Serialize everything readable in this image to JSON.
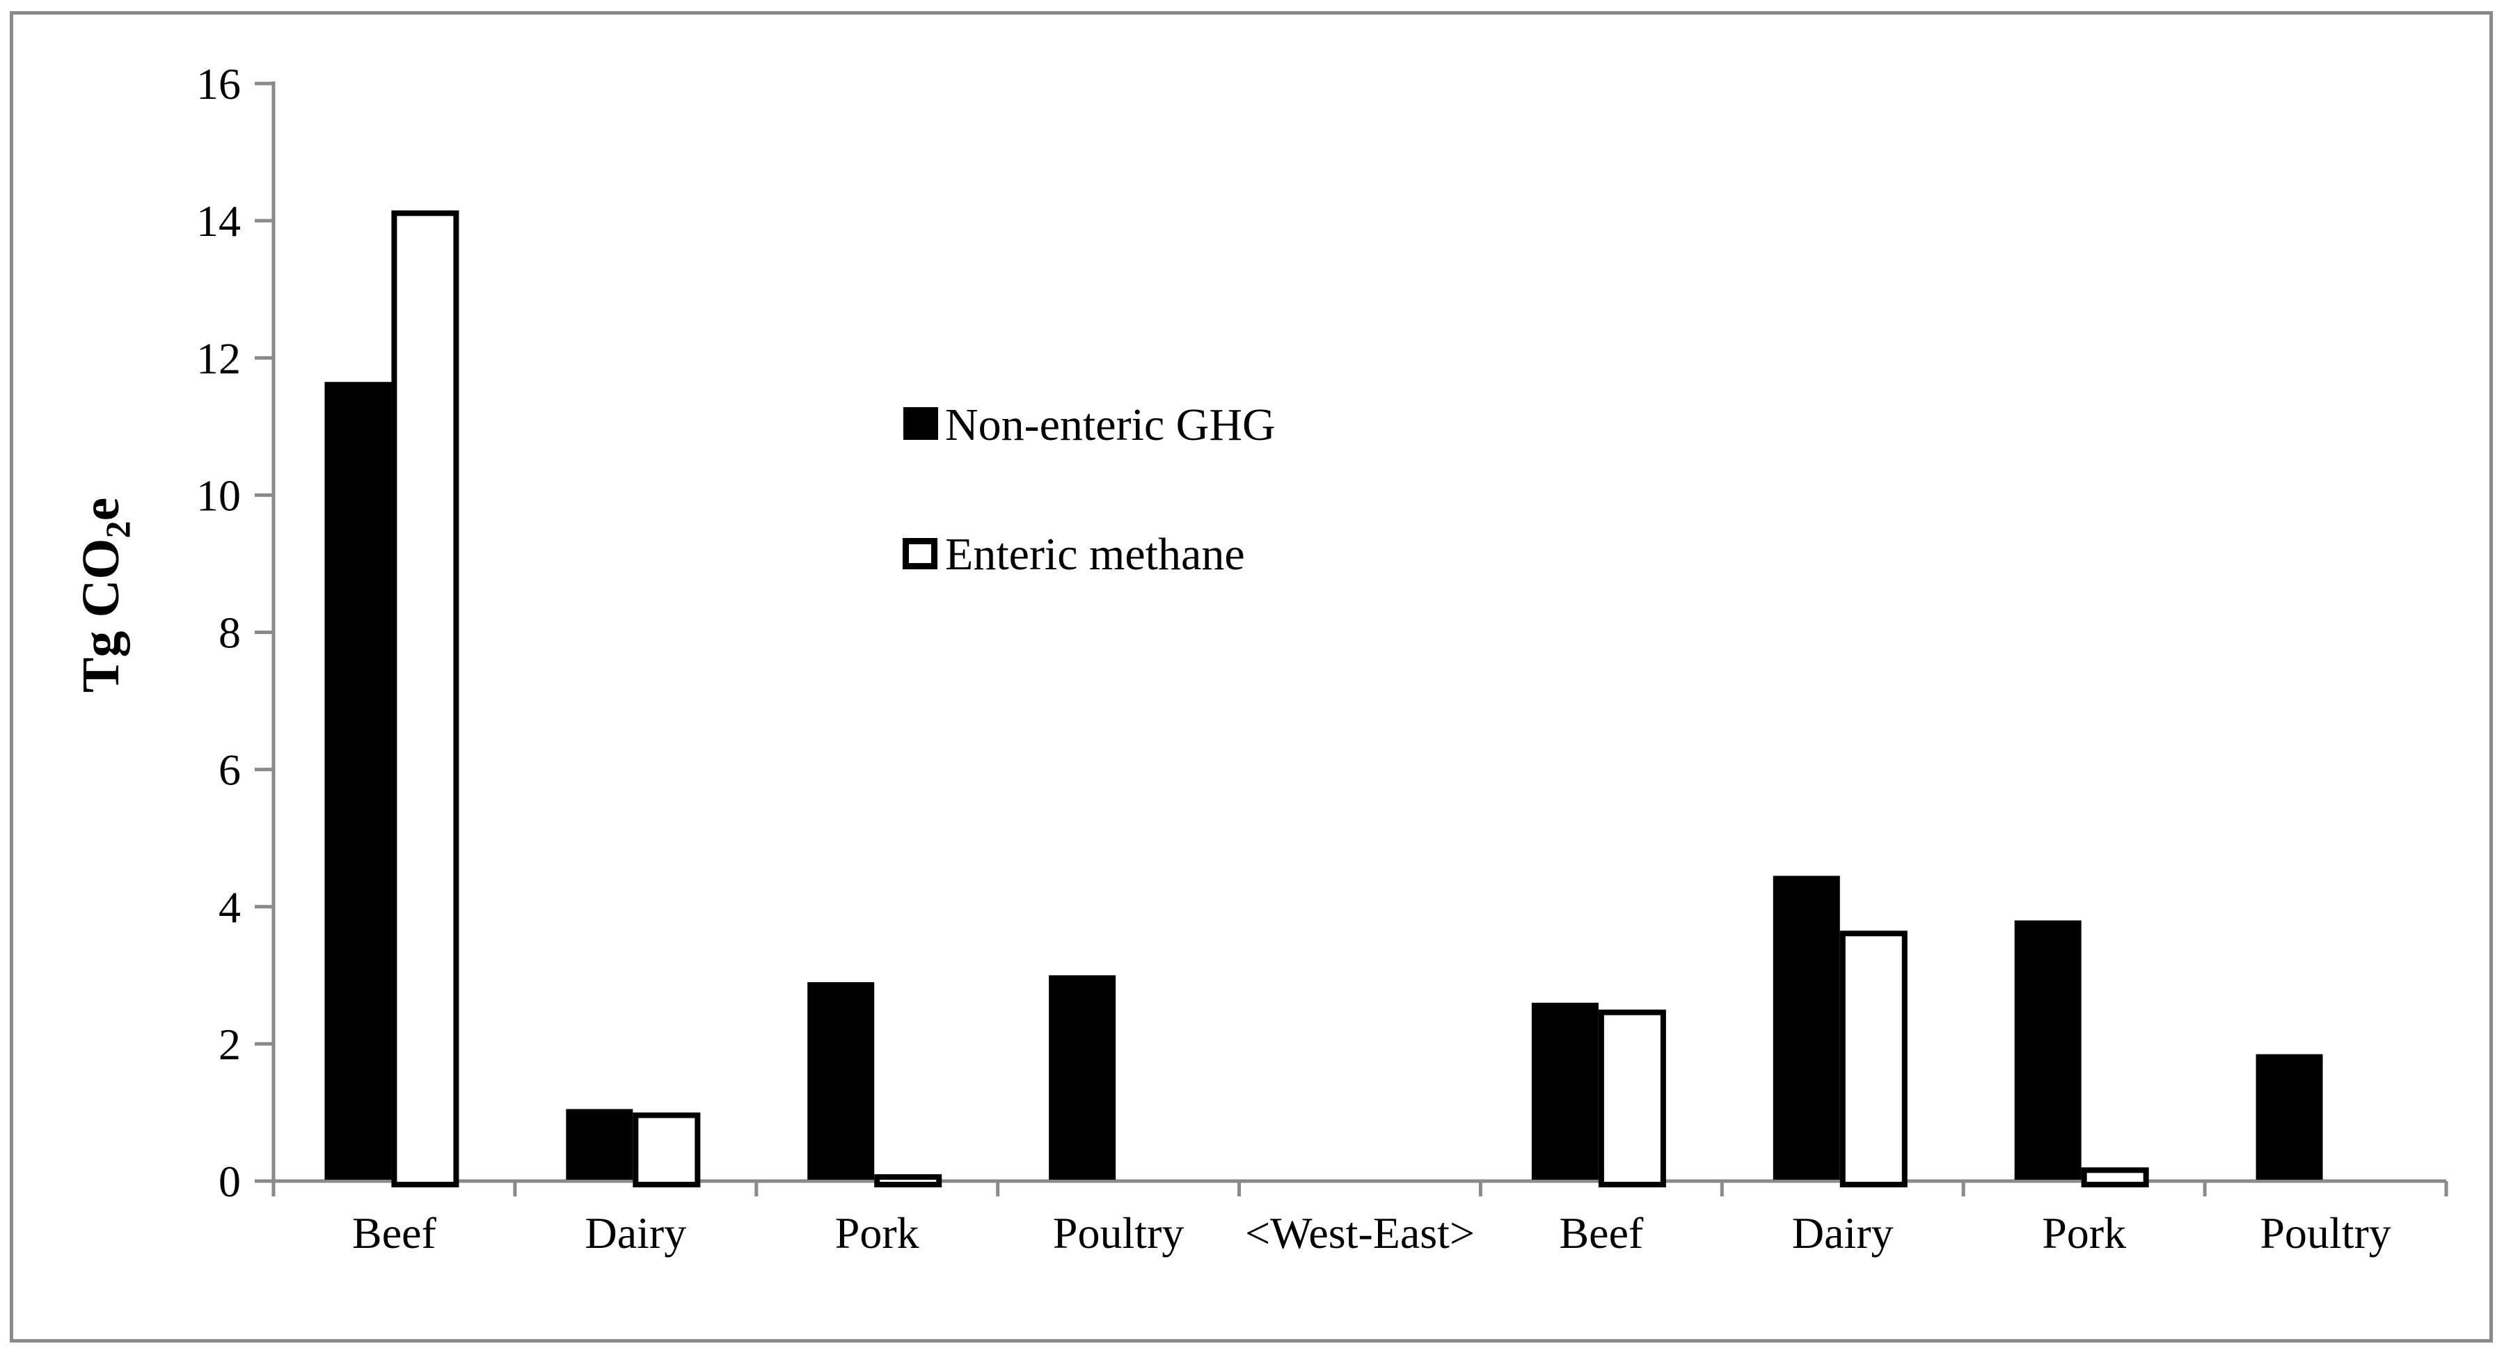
{
  "figure": {
    "background": "#ffffff",
    "border_color": "#8a8a8a",
    "axis_color": "#8a8a8a",
    "text_color": "#000000"
  },
  "chart_data": {
    "type": "bar",
    "title": "",
    "xlabel": "",
    "ylabel": "Tg CO2e",
    "ylabel_rich": {
      "prefix": "Tg CO",
      "subscript": "2",
      "suffix": "e"
    },
    "ylim": [
      0,
      16
    ],
    "ytick_interval": 2,
    "yticks": [
      16,
      14,
      12,
      10,
      8,
      6,
      4,
      2,
      0
    ],
    "grid": false,
    "legend_position": "inside-upper-middle",
    "categories": [
      "Beef",
      "Dairy",
      "Pork",
      "Poultry",
      "<West-East>",
      "Beef",
      "Dairy",
      "Pork",
      "Poultry"
    ],
    "region_divider_label": "<West-East>",
    "series": [
      {
        "name": "Non-enteric GHG",
        "fill": "#000000",
        "outline": "#000000",
        "values": [
          11.65,
          1.05,
          2.9,
          3.0,
          null,
          2.6,
          4.45,
          3.8,
          1.85
        ]
      },
      {
        "name": "Enteric methane",
        "fill": "#ffffff",
        "outline": "#000000",
        "values": [
          14.15,
          1.0,
          0.1,
          null,
          null,
          2.5,
          3.65,
          0.2,
          null
        ]
      }
    ]
  }
}
